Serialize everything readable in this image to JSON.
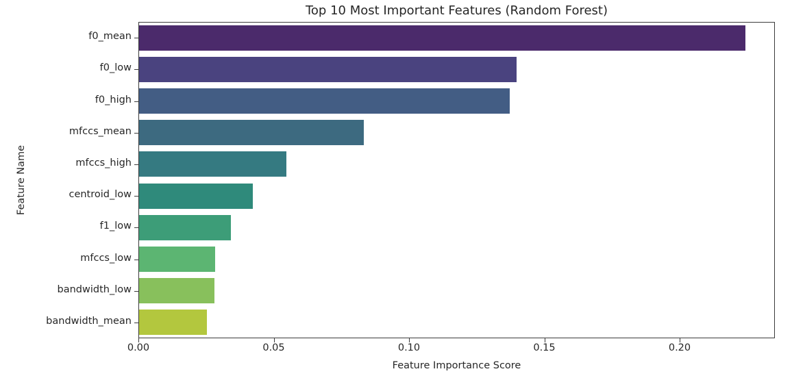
{
  "chart_data": {
    "type": "bar",
    "orientation": "horizontal",
    "title": "Top 10 Most Important Features (Random Forest)",
    "xlabel": "Feature Importance Score",
    "ylabel": "Feature Name",
    "xlim": [
      0,
      0.235
    ],
    "xticks": [
      "0.00",
      "0.05",
      "0.10",
      "0.15",
      "0.20"
    ],
    "grid": false,
    "legend": null,
    "categories": [
      "f0_mean",
      "f0_low",
      "f0_high",
      "mfccs_mean",
      "mfccs_high",
      "centroid_low",
      "f1_low",
      "mfccs_low",
      "bandwidth_low",
      "bandwidth_mean"
    ],
    "values": [
      0.224,
      0.1395,
      0.137,
      0.083,
      0.0545,
      0.042,
      0.034,
      0.028,
      0.0278,
      0.025
    ],
    "colors": [
      "#4b2a6b",
      "#4a437f",
      "#435d84",
      "#3d6a80",
      "#357a81",
      "#2f8a7b",
      "#3d9d78",
      "#5cb572",
      "#88c05c",
      "#b3c73e"
    ]
  }
}
